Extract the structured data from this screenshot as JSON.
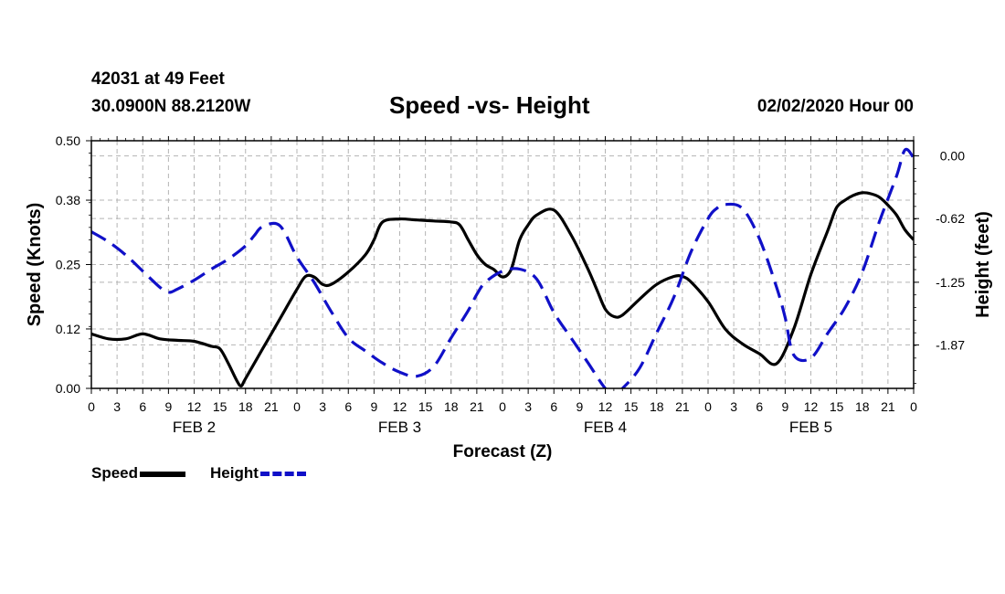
{
  "header": {
    "station": "42031 at 49 Feet",
    "coords": "30.0900N 88.2120W",
    "title": "Speed -vs- Height",
    "date": "02/02/2020 Hour 00"
  },
  "legend": {
    "speed": "Speed",
    "height": "Height"
  },
  "colors": {
    "speed": "#000000",
    "height": "#1010c8",
    "grid": "#b4b4b4"
  },
  "chart_data": {
    "type": "line",
    "title": "Speed -vs- Height",
    "xlabel": "Forecast (Z)",
    "ylabel": "Speed (Knots)",
    "y2label": "Height (feet)",
    "ylim": [
      0,
      0.5
    ],
    "y2lim": [
      -2.3,
      0.15
    ],
    "yticks": [
      "0.00",
      "0.12",
      "0.25",
      "0.38",
      "0.50"
    ],
    "y2ticks": [
      {
        "label": "0.00",
        "value": 0.0
      },
      {
        "label": "-0.62",
        "value": -0.62
      },
      {
        "label": "-1.25",
        "value": -1.25
      },
      {
        "label": "-1.87",
        "value": -1.87
      }
    ],
    "xlim": [
      0,
      96
    ],
    "xtick_labels": [
      "0",
      "3",
      "6",
      "9",
      "12",
      "15",
      "18",
      "21",
      "0",
      "3",
      "6",
      "9",
      "12",
      "15",
      "18",
      "21",
      "0",
      "3",
      "6",
      "9",
      "12",
      "15",
      "18",
      "21",
      "0",
      "3",
      "6",
      "9",
      "12",
      "15",
      "18",
      "21",
      "0"
    ],
    "day_labels": [
      {
        "label": "FEB 2",
        "hour": 12
      },
      {
        "label": "FEB 3",
        "hour": 36
      },
      {
        "label": "FEB 4",
        "hour": 60
      },
      {
        "label": "FEB 5",
        "hour": 84
      }
    ],
    "legend_position": "bottom-left",
    "series": [
      {
        "name": "Speed",
        "axis": "left",
        "style": "solid",
        "x": [
          0,
          2,
          4,
          6,
          8,
          10,
          12,
          14,
          15,
          16,
          17,
          17.5,
          18,
          20,
          22,
          24,
          25,
          26,
          27,
          28,
          30,
          32,
          33,
          34,
          36,
          38,
          40,
          42,
          43,
          44,
          45,
          46,
          47,
          48,
          49,
          50,
          51,
          52,
          54,
          56,
          58,
          59,
          60,
          61,
          62,
          64,
          66,
          68,
          69,
          70,
          72,
          74,
          76,
          78,
          80,
          82,
          84,
          86,
          87,
          88,
          89,
          90,
          91,
          92,
          93,
          94,
          95,
          96
        ],
        "y": [
          0.11,
          0.1,
          0.1,
          0.11,
          0.1,
          0.097,
          0.095,
          0.085,
          0.08,
          0.05,
          0.015,
          0.005,
          0.02,
          0.08,
          0.14,
          0.2,
          0.226,
          0.225,
          0.21,
          0.21,
          0.235,
          0.27,
          0.3,
          0.336,
          0.342,
          0.34,
          0.338,
          0.336,
          0.33,
          0.3,
          0.27,
          0.25,
          0.24,
          0.225,
          0.24,
          0.3,
          0.33,
          0.35,
          0.36,
          0.31,
          0.24,
          0.2,
          0.16,
          0.145,
          0.148,
          0.18,
          0.21,
          0.226,
          0.226,
          0.215,
          0.175,
          0.12,
          0.09,
          0.07,
          0.05,
          0.12,
          0.23,
          0.32,
          0.365,
          0.38,
          0.39,
          0.395,
          0.393,
          0.386,
          0.37,
          0.35,
          0.32,
          0.3
        ]
      },
      {
        "name": "Height",
        "axis": "right",
        "style": "dashed",
        "x": [
          0,
          2,
          4,
          6,
          8,
          9,
          10,
          12,
          14,
          16,
          18,
          19,
          20,
          22,
          24,
          26,
          28,
          30,
          32,
          34,
          36,
          38,
          40,
          42,
          44,
          45,
          46,
          48,
          50,
          52,
          54,
          56,
          58,
          60,
          61,
          62,
          64,
          66,
          68,
          70,
          72,
          73,
          74,
          76,
          78,
          80,
          81,
          82,
          84,
          86,
          88,
          90,
          92,
          94,
          95,
          96
        ],
        "y": [
          -0.75,
          -0.85,
          -0.98,
          -1.14,
          -1.3,
          -1.35,
          -1.32,
          -1.23,
          -1.12,
          -1.02,
          -0.89,
          -0.79,
          -0.7,
          -0.69,
          -1.0,
          -1.25,
          -1.54,
          -1.8,
          -1.93,
          -2.05,
          -2.14,
          -2.18,
          -2.08,
          -1.8,
          -1.53,
          -1.37,
          -1.25,
          -1.14,
          -1.12,
          -1.22,
          -1.55,
          -1.8,
          -2.05,
          -2.3,
          -2.35,
          -2.3,
          -2.1,
          -1.75,
          -1.4,
          -0.95,
          -0.62,
          -0.52,
          -0.48,
          -0.52,
          -0.82,
          -1.3,
          -1.6,
          -1.97,
          -2.0,
          -1.75,
          -1.5,
          -1.15,
          -0.65,
          -0.2,
          0.06,
          -0.02
        ]
      }
    ]
  }
}
